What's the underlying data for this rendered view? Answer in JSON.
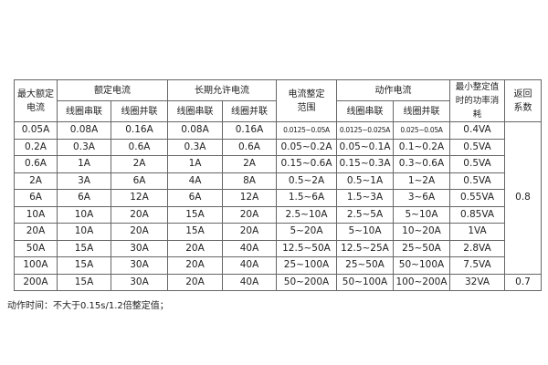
{
  "table": {
    "headers": {
      "max_rated_current": "最大额定电流",
      "rated_current": "额定电流",
      "long_term_current": "长期允许电流",
      "setting_range": "电流整定范围",
      "operating_current": "动作电流",
      "min_power": "最小整定值时的功率消耗",
      "return_coef": "返回系数",
      "series": "线圈串联",
      "parallel": "线圈并联"
    },
    "rows": [
      [
        "0.05A",
        "0.08A",
        "0.16A",
        "0.08A",
        "0.16A",
        "0.0125~0.05A",
        "0.0125~0.025A",
        "0.025~0.05A",
        "0.4VA"
      ],
      [
        "0.2A",
        "0.3A",
        "0.6A",
        "0.3A",
        "0.6A",
        "0.05~0.2A",
        "0.05~0.1A",
        "0.1~0.2A",
        "0.5VA"
      ],
      [
        "0.6A",
        "1A",
        "2A",
        "1A",
        "2A",
        "0.15~0.6A",
        "0.15~0.3A",
        "0.3~0.6A",
        "0.5VA"
      ],
      [
        "2A",
        "3A",
        "6A",
        "4A",
        "8A",
        "0.5~2A",
        "0.5~1A",
        "1~2A",
        "0.5VA"
      ],
      [
        "6A",
        "6A",
        "12A",
        "6A",
        "12A",
        "1.5~6A",
        "1.5~3A",
        "3~6A",
        "0.55VA"
      ],
      [
        "10A",
        "10A",
        "20A",
        "15A",
        "20A",
        "2.5~10A",
        "2.5~5A",
        "5~10A",
        "0.85VA"
      ],
      [
        "20A",
        "10A",
        "20A",
        "15A",
        "20A",
        "5~20A",
        "5~10A",
        "10~20A",
        "1VA"
      ],
      [
        "50A",
        "15A",
        "30A",
        "20A",
        "40A",
        "12.5~50A",
        "12.5~25A",
        "25~50A",
        "2.8VA"
      ],
      [
        "100A",
        "15A",
        "30A",
        "20A",
        "40A",
        "25~100A",
        "25~50A",
        "50~100A",
        "7.5VA"
      ],
      [
        "200A",
        "15A",
        "30A",
        "20A",
        "40A",
        "50~200A",
        "50~100A",
        "100~200A",
        "32VA"
      ]
    ],
    "return_coef_values": [
      "0.8",
      "0.7"
    ]
  },
  "note": "动作时间：不大于0.15s/1.2倍整定值；"
}
